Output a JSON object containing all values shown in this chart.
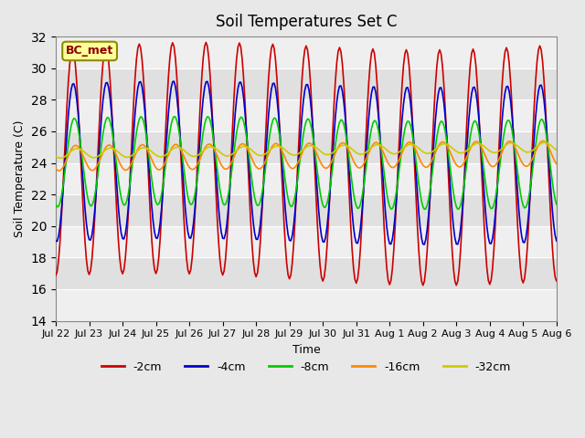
{
  "title": "Soil Temperatures Set C",
  "xlabel": "Time",
  "ylabel": "Soil Temperature (C)",
  "ylim": [
    14,
    32
  ],
  "yticks": [
    14,
    16,
    18,
    20,
    22,
    24,
    26,
    28,
    30,
    32
  ],
  "annotation_label": "BC_met",
  "series": {
    "-2cm": {
      "color": "#CC0000",
      "amplitude": 7.5,
      "phase": 0.0,
      "mean": 24.0
    },
    "-4cm": {
      "color": "#0000CC",
      "amplitude": 5.0,
      "phase": 0.15,
      "mean": 24.0
    },
    "-8cm": {
      "color": "#00CC00",
      "amplitude": 2.8,
      "phase": 0.35,
      "mean": 24.0
    },
    "-16cm": {
      "color": "#FF8800",
      "amplitude": 0.8,
      "phase": 0.6,
      "mean": 24.3
    },
    "-32cm": {
      "color": "#CCCC00",
      "amplitude": 0.3,
      "phase": 0.9,
      "mean": 24.6
    }
  },
  "xtick_labels": [
    "Jul 22",
    "Jul 23",
    "Jul 24",
    "Jul 25",
    "Jul 26",
    "Jul 27",
    "Jul 28",
    "Jul 29",
    "Jul 30",
    "Jul 31",
    "Aug 1",
    "Aug 2",
    "Aug 3",
    "Aug 4",
    "Aug 5",
    "Aug 6"
  ],
  "legend_entries": [
    "-2cm",
    "-4cm",
    "-8cm",
    "-16cm",
    "-32cm"
  ],
  "legend_colors": [
    "#CC0000",
    "#0000CC",
    "#00CC00",
    "#FF8800",
    "#CCCC00"
  ],
  "bg_color": "#E8E8E8",
  "plot_bg_color": "#E0E0E0",
  "num_days": 15,
  "points_per_day": 24,
  "figsize": [
    6.4,
    4.8
  ],
  "dpi": 100
}
